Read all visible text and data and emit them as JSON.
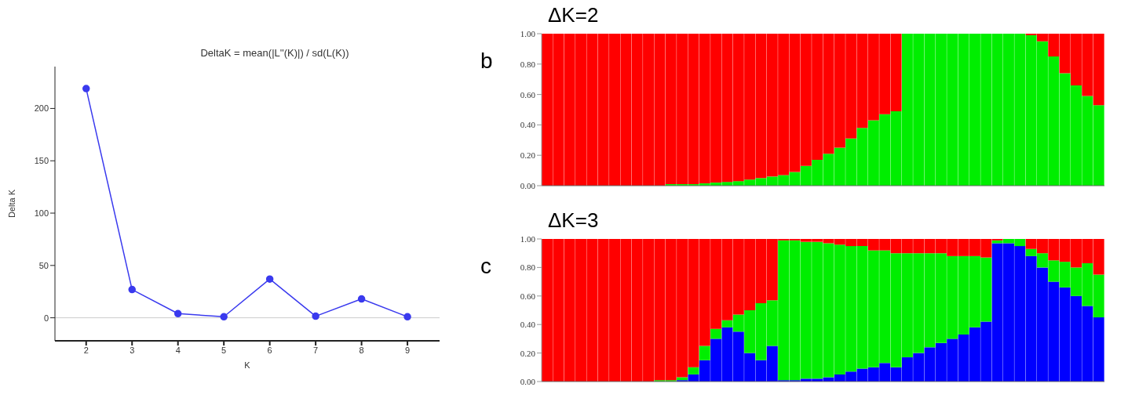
{
  "chart_data": [
    {
      "type": "line",
      "title": "DeltaK = mean(|L''(K)|) / sd(L(K))",
      "xlabel": "K",
      "ylabel": "Delta K",
      "x": [
        2,
        3,
        4,
        5,
        6,
        7,
        8,
        9
      ],
      "series": [
        {
          "color": "#3a3aee",
          "values": [
            219,
            27,
            4,
            1,
            37,
            1.5,
            18,
            1
          ]
        }
      ],
      "xlim": [
        1.32,
        9.7
      ],
      "xticks": [
        2,
        3,
        4,
        5,
        6,
        7,
        8,
        9
      ],
      "ylim": [
        -22,
        240
      ],
      "yticks": [
        0,
        50,
        100,
        150,
        200
      ],
      "marker": "circle",
      "grid": false,
      "ref_lines": [
        {
          "axis": "y",
          "value": 0,
          "color": "#cccccc"
        }
      ]
    },
    {
      "type": "bar",
      "title": "ΔK=2",
      "annotations": [
        "b"
      ],
      "stacked": true,
      "categories": [
        null,
        null,
        null,
        null,
        null,
        null,
        null,
        null,
        null,
        null,
        null,
        null,
        null,
        null,
        null,
        null,
        null,
        null,
        null,
        null,
        null,
        null,
        null,
        null,
        null,
        null,
        null,
        null,
        null,
        null,
        null,
        null,
        null,
        null,
        null,
        null,
        null,
        null,
        null,
        null,
        null,
        null,
        null,
        null,
        null,
        null,
        null,
        null,
        null,
        null
      ],
      "series": [
        {
          "color": "#00ee00",
          "values": [
            0,
            0,
            0,
            0,
            0,
            0,
            0,
            0,
            0,
            0,
            0,
            0.01,
            0.01,
            0.01,
            0.015,
            0.02,
            0.025,
            0.03,
            0.04,
            0.05,
            0.06,
            0.07,
            0.09,
            0.13,
            0.17,
            0.21,
            0.25,
            0.31,
            0.38,
            0.43,
            0.47,
            0.49,
            1,
            1,
            1,
            1,
            1,
            1,
            1,
            1,
            1,
            1,
            1,
            0.99,
            0.95,
            0.85,
            0.74,
            0.66,
            0.59,
            0.53
          ]
        },
        {
          "color": "#ff0000",
          "values": [
            1,
            1,
            1,
            1,
            1,
            1,
            1,
            1,
            1,
            1,
            1,
            0.99,
            0.99,
            0.99,
            0.985,
            0.98,
            0.975,
            0.97,
            0.96,
            0.95,
            0.94,
            0.93,
            0.91,
            0.87,
            0.83,
            0.79,
            0.75,
            0.69,
            0.62,
            0.57,
            0.53,
            0.51,
            0,
            0,
            0,
            0,
            0,
            0,
            0,
            0,
            0,
            0,
            0,
            0.01,
            0.05,
            0.15,
            0.26,
            0.34,
            0.41,
            0.47
          ]
        }
      ],
      "ylim": [
        0,
        1
      ],
      "yticks": [
        {
          "value": 0,
          "label": "0.00"
        },
        {
          "value": 0.2,
          "label": "0.20"
        },
        {
          "value": 0.4,
          "label": "0.40"
        },
        {
          "value": 0.6,
          "label": "0.60"
        },
        {
          "value": 0.8,
          "label": "0.80"
        },
        {
          "value": 1,
          "label": "1.00"
        }
      ]
    },
    {
      "type": "bar",
      "title": "ΔK=3",
      "annotations": [
        "c"
      ],
      "stacked": true,
      "categories": [
        null,
        null,
        null,
        null,
        null,
        null,
        null,
        null,
        null,
        null,
        null,
        null,
        null,
        null,
        null,
        null,
        null,
        null,
        null,
        null,
        null,
        null,
        null,
        null,
        null,
        null,
        null,
        null,
        null,
        null,
        null,
        null,
        null,
        null,
        null,
        null,
        null,
        null,
        null,
        null,
        null,
        null,
        null,
        null,
        null,
        null,
        null,
        null,
        null,
        null
      ],
      "series": [
        {
          "color": "#0000ff",
          "values": [
            0,
            0,
            0,
            0,
            0,
            0,
            0,
            0,
            0,
            0,
            0,
            0,
            0.01,
            0.05,
            0.15,
            0.3,
            0.38,
            0.35,
            0.2,
            0.15,
            0.25,
            0.01,
            0.01,
            0.02,
            0.02,
            0.03,
            0.05,
            0.07,
            0.09,
            0.1,
            0.13,
            0.1,
            0.17,
            0.2,
            0.24,
            0.27,
            0.3,
            0.33,
            0.38,
            0.42,
            0.97,
            0.97,
            0.95,
            0.88,
            0.8,
            0.7,
            0.66,
            0.6,
            0.53,
            0.45
          ]
        },
        {
          "color": "#00ee00",
          "values": [
            0,
            0,
            0,
            0,
            0,
            0,
            0,
            0,
            0,
            0,
            0.01,
            0.01,
            0.02,
            0.05,
            0.1,
            0.07,
            0.05,
            0.12,
            0.3,
            0.4,
            0.32,
            0.98,
            0.98,
            0.96,
            0.96,
            0.94,
            0.91,
            0.88,
            0.86,
            0.82,
            0.79,
            0.8,
            0.73,
            0.7,
            0.66,
            0.63,
            0.58,
            0.55,
            0.5,
            0.45,
            0.02,
            0.03,
            0.05,
            0.05,
            0.1,
            0.15,
            0.18,
            0.2,
            0.3,
            0.3
          ]
        },
        {
          "color": "#ff0000",
          "values": [
            1,
            1,
            1,
            1,
            1,
            1,
            1,
            1,
            1,
            1,
            0.99,
            0.99,
            0.97,
            0.9,
            0.75,
            0.63,
            0.57,
            0.53,
            0.5,
            0.45,
            0.43,
            0.01,
            0.01,
            0.02,
            0.02,
            0.03,
            0.04,
            0.05,
            0.05,
            0.08,
            0.08,
            0.1,
            0.1,
            0.1,
            0.1,
            0.1,
            0.12,
            0.12,
            0.12,
            0.13,
            0.01,
            0,
            0,
            0.07,
            0.1,
            0.15,
            0.16,
            0.2,
            0.17,
            0.25
          ]
        }
      ],
      "ylim": [
        0,
        1
      ],
      "yticks": [
        {
          "value": 0,
          "label": "0.00"
        },
        {
          "value": 0.2,
          "label": "0.20"
        },
        {
          "value": 0.4,
          "label": "0.40"
        },
        {
          "value": 0.6,
          "label": "0.60"
        },
        {
          "value": 0.8,
          "label": "0.80"
        },
        {
          "value": 1,
          "label": "1.00"
        }
      ]
    }
  ]
}
